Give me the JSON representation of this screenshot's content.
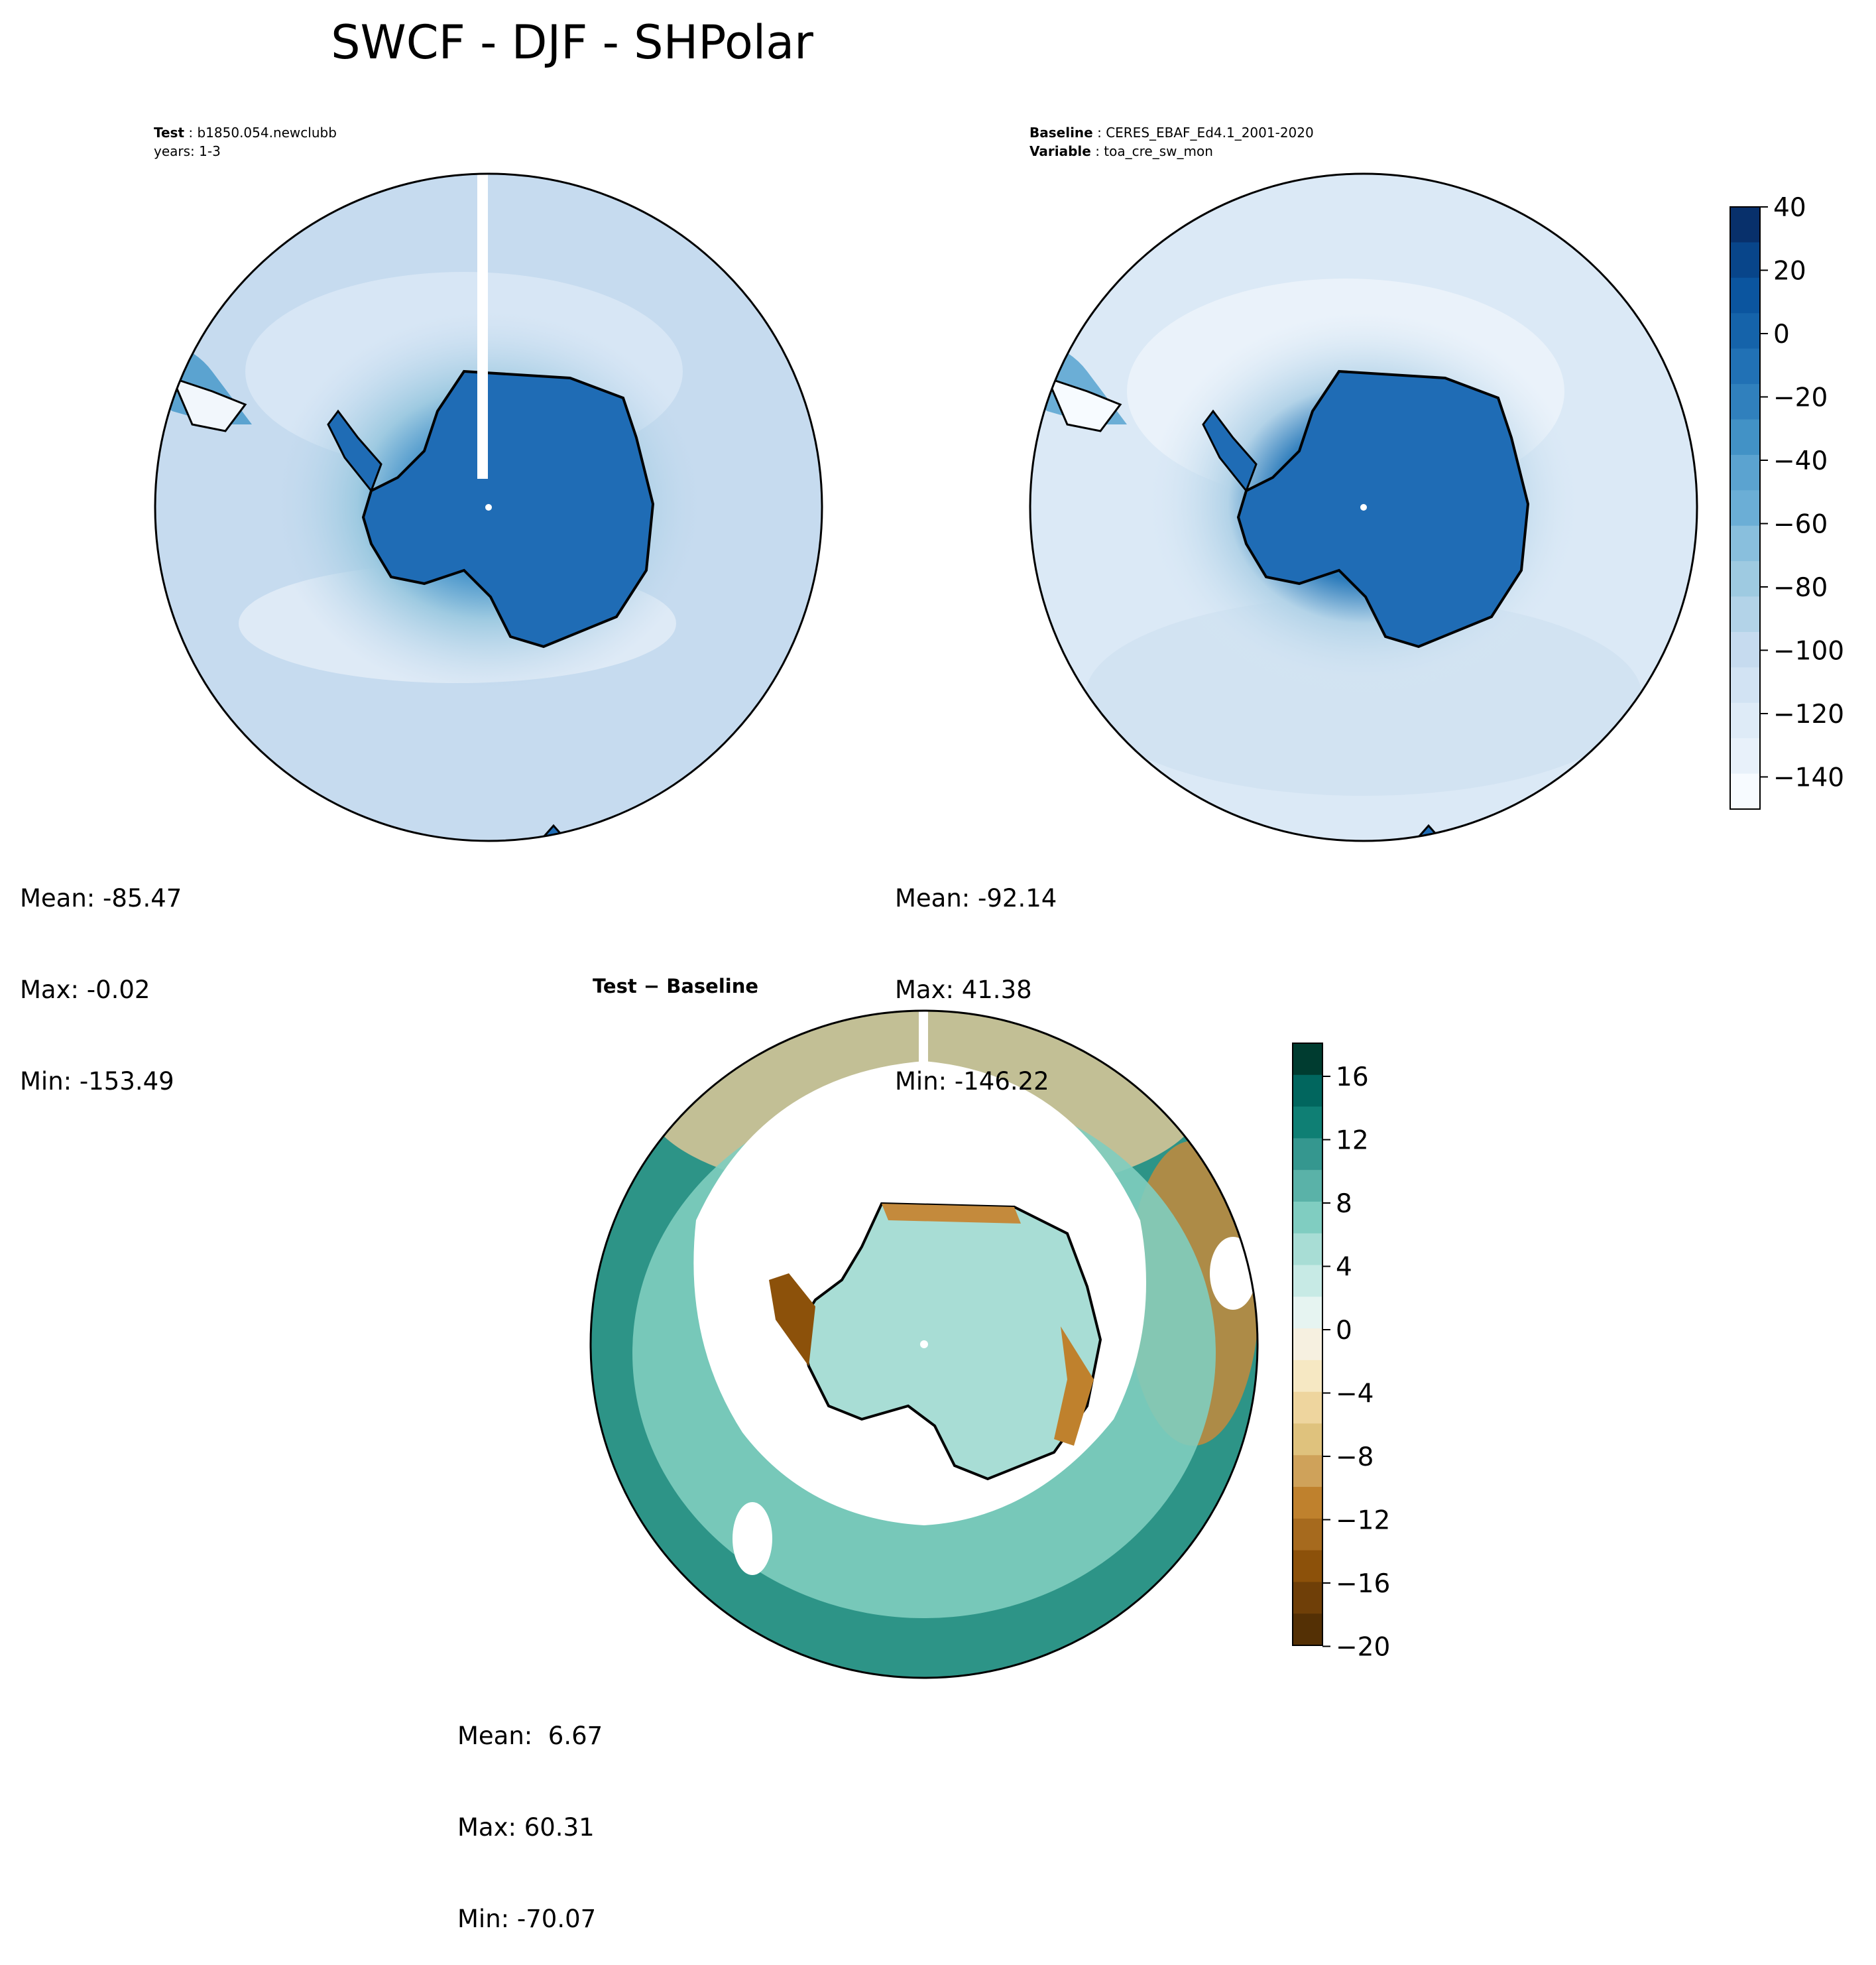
{
  "title": "SWCF - DJF - SHPolar",
  "panels": {
    "test": {
      "label_key": "Test",
      "label_value": "b1850.054.newclubb",
      "sub_line": "years: 1-3",
      "stats": {
        "mean": "Mean: -85.47",
        "max": "Max: -0.02",
        "min": "Min: -153.49"
      }
    },
    "baseline": {
      "label_key": "Baseline",
      "label_value": "CERES_EBAF_Ed4.1_2001-2020",
      "var_key": "Variable",
      "var_value": "toa_cre_sw_mon",
      "stats": {
        "mean": "Mean: -92.14",
        "max": "Max: 41.38",
        "min": "Min: -146.22"
      }
    },
    "diff": {
      "label": "Test − Baseline",
      "stats": {
        "mean": "Mean:  6.67",
        "max": "Max: 60.31",
        "min": "Min: -70.07"
      }
    }
  },
  "colorbars": {
    "main": {
      "ticks": [
        "40",
        "20",
        "0",
        "−20",
        "−40",
        "−60",
        "−80",
        "−100",
        "−120",
        "−140"
      ],
      "colors_top_to_bottom": [
        "#08306b",
        "#08458a",
        "#0b559f",
        "#1563aa",
        "#2171b5",
        "#3080bd",
        "#4292c6",
        "#5ba3d0",
        "#6baed6",
        "#89bfdd",
        "#9ecae1",
        "#b3d3e8",
        "#c6dbef",
        "#d2e3f3",
        "#deebf7",
        "#e8f1fa",
        "#f7fbff"
      ]
    },
    "diff": {
      "ticks": [
        "16",
        "12",
        "8",
        "4",
        "0",
        "−4",
        "−8",
        "−12",
        "−16",
        "−20"
      ],
      "colors_top_to_bottom": [
        "#003c30",
        "#01665e",
        "#0f7f74",
        "#35978f",
        "#5ab2a8",
        "#80cdc1",
        "#a8ddd5",
        "#c7eae5",
        "#e6f4f1",
        "#f6f0e0",
        "#f6e8c3",
        "#eed59e",
        "#dfc27d",
        "#cfa25a",
        "#bf812d",
        "#a66a1e",
        "#8c510a",
        "#6f3f08",
        "#543005"
      ]
    }
  },
  "colors": {
    "ocean_test": "#c6dbef",
    "ocean_baseline": "#dbe9f6",
    "antarctica": "#1f6cb5",
    "diff_ocean": "#2d9487",
    "diff_inner": "#a8ddd5",
    "diff_brown": "#c48a3c"
  }
}
